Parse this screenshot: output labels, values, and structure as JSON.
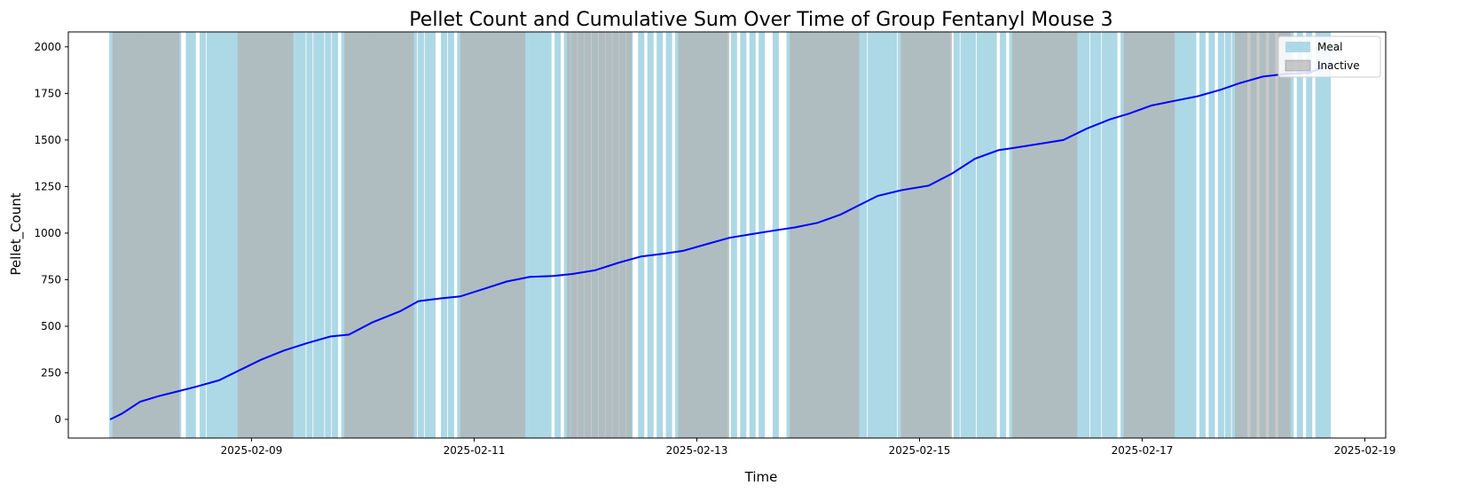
{
  "chart_data": {
    "type": "line",
    "title": "Pellet Count and Cumulative Sum Over Time of Group Fentanyl Mouse 3",
    "xlabel": "Time",
    "ylabel": "Pellet_Count",
    "ylim": [
      -100,
      2080
    ],
    "xlim": [
      "2025-02-07T08:30",
      "2025-02-19T04:30"
    ],
    "yticks": [
      0,
      250,
      500,
      750,
      1000,
      1250,
      1500,
      1750,
      2000
    ],
    "xticks": [
      "2025-02-09",
      "2025-02-11",
      "2025-02-13",
      "2025-02-15",
      "2025-02-17",
      "2025-02-19"
    ],
    "legend_position": "top-right",
    "legend": [
      {
        "label": "Meal",
        "color": "#add8e6"
      },
      {
        "label": "Inactive",
        "color": "#b0b0b0"
      }
    ],
    "series": [
      {
        "color": "#0000ff",
        "x": [
          "2025-02-07T17:30",
          "2025-02-07T20:00",
          "2025-02-08T00:00",
          "2025-02-08T04:00",
          "2025-02-08T08:00",
          "2025-02-08T12:00",
          "2025-02-08T17:00",
          "2025-02-08T21:30",
          "2025-02-09T02:00",
          "2025-02-09T07:00",
          "2025-02-09T12:00",
          "2025-02-09T17:00",
          "2025-02-09T21:00",
          "2025-02-10T02:00",
          "2025-02-10T08:00",
          "2025-02-10T12:00",
          "2025-02-10T17:00",
          "2025-02-10T21:00",
          "2025-02-11T02:00",
          "2025-02-11T07:00",
          "2025-02-11T12:00",
          "2025-02-11T17:00",
          "2025-02-11T21:00",
          "2025-02-12T02:00",
          "2025-02-12T07:00",
          "2025-02-12T12:00",
          "2025-02-12T17:00",
          "2025-02-12T21:00",
          "2025-02-13T02:00",
          "2025-02-13T07:00",
          "2025-02-13T12:00",
          "2025-02-13T17:00",
          "2025-02-13T21:00",
          "2025-02-14T02:00",
          "2025-02-14T07:00",
          "2025-02-14T11:00",
          "2025-02-14T15:00",
          "2025-02-14T20:00",
          "2025-02-15T02:00",
          "2025-02-15T07:00",
          "2025-02-15T12:00",
          "2025-02-15T17:00",
          "2025-02-15T21:00",
          "2025-02-16T02:00",
          "2025-02-16T07:00",
          "2025-02-16T12:00",
          "2025-02-16T17:00",
          "2025-02-16T21:00",
          "2025-02-17T02:00",
          "2025-02-17T07:00",
          "2025-02-17T12:00",
          "2025-02-17T17:00",
          "2025-02-17T21:00",
          "2025-02-18T02:00",
          "2025-02-18T07:00",
          "2025-02-18T12:00",
          "2025-02-18T17:00"
        ],
        "y": [
          0,
          30,
          95,
          125,
          150,
          175,
          210,
          265,
          320,
          370,
          410,
          445,
          455,
          520,
          580,
          635,
          650,
          660,
          700,
          740,
          765,
          770,
          780,
          800,
          840,
          875,
          890,
          905,
          940,
          975,
          995,
          1015,
          1030,
          1055,
          1100,
          1150,
          1200,
          1230,
          1255,
          1320,
          1400,
          1445,
          1460,
          1480,
          1500,
          1560,
          1610,
          1640,
          1685,
          1710,
          1735,
          1770,
          1805,
          1840,
          1855,
          1860,
          1910
        ]
      }
    ],
    "inactive_periods": [
      [
        "2025-02-07T18:00",
        "2025-02-08T08:30"
      ],
      [
        "2025-02-08T21:00",
        "2025-02-09T09:00"
      ],
      [
        "2025-02-09T20:00",
        "2025-02-10T11:00"
      ],
      [
        "2025-02-10T21:00",
        "2025-02-11T11:00"
      ],
      [
        "2025-02-11T20:00",
        "2025-02-12T10:00"
      ],
      [
        "2025-02-12T20:00",
        "2025-02-13T07:00"
      ],
      [
        "2025-02-13T20:00",
        "2025-02-14T11:00"
      ],
      [
        "2025-02-14T20:00",
        "2025-02-15T07:00"
      ],
      [
        "2025-02-15T20:00",
        "2025-02-16T10:00"
      ],
      [
        "2025-02-16T20:00",
        "2025-02-17T07:00"
      ],
      [
        "2025-02-17T20:00",
        "2025-02-18T08:00"
      ]
    ],
    "meal_times": [
      "2025-02-07T18:00",
      "2025-02-07T18:50",
      "2025-02-07T19:40",
      "2025-02-07T20:30",
      "2025-02-07T21:20",
      "2025-02-07T22:10",
      "2025-02-07T23:00",
      "2025-02-07T23:50",
      "2025-02-08T00:40",
      "2025-02-08T01:30",
      "2025-02-08T02:20",
      "2025-02-08T03:10",
      "2025-02-08T04:00",
      "2025-02-08T04:50",
      "2025-02-08T05:40",
      "2025-02-08T06:30",
      "2025-02-08T07:20",
      "2025-02-08T08:10",
      "2025-02-08T10:30",
      "2025-02-08T11:20",
      "2025-02-08T13:30",
      "2025-02-08T15:00",
      "2025-02-08T16:00",
      "2025-02-08T17:00",
      "2025-02-08T18:00",
      "2025-02-08T19:00",
      "2025-02-08T20:00",
      "2025-02-08T21:00",
      "2025-02-08T21:50",
      "2025-02-08T22:40",
      "2025-02-08T23:30",
      "2025-02-09T00:20",
      "2025-02-09T01:10",
      "2025-02-09T02:00",
      "2025-02-09T02:50",
      "2025-02-09T03:40",
      "2025-02-09T04:30",
      "2025-02-09T05:20",
      "2025-02-09T06:10",
      "2025-02-09T07:00",
      "2025-02-09T07:50",
      "2025-02-09T08:40",
      "2025-02-09T10:00",
      "2025-02-09T11:00",
      "2025-02-09T12:30",
      "2025-02-09T14:00",
      "2025-02-09T15:00",
      "2025-02-09T16:30",
      "2025-02-09T18:00",
      "2025-02-09T20:00",
      "2025-02-09T20:50",
      "2025-02-09T21:40",
      "2025-02-09T22:30",
      "2025-02-09T23:20",
      "2025-02-10T00:10",
      "2025-02-10T01:00",
      "2025-02-10T01:50",
      "2025-02-10T02:40",
      "2025-02-10T03:30",
      "2025-02-10T04:20",
      "2025-02-10T05:10",
      "2025-02-10T06:00",
      "2025-02-10T06:50",
      "2025-02-10T07:40",
      "2025-02-10T08:30",
      "2025-02-10T09:20",
      "2025-02-10T10:10",
      "2025-02-10T11:00",
      "2025-02-10T12:30",
      "2025-02-10T14:00",
      "2025-02-10T15:00",
      "2025-02-10T17:30",
      "2025-02-10T19:00",
      "2025-02-10T21:00",
      "2025-02-10T21:50",
      "2025-02-10T22:40",
      "2025-02-10T23:30",
      "2025-02-11T00:20",
      "2025-02-11T01:10",
      "2025-02-11T02:00",
      "2025-02-11T02:50",
      "2025-02-11T03:40",
      "2025-02-11T04:30",
      "2025-02-11T05:20",
      "2025-02-11T06:10",
      "2025-02-11T07:00",
      "2025-02-11T07:50",
      "2025-02-11T08:40",
      "2025-02-11T09:30",
      "2025-02-11T10:20",
      "2025-02-11T11:10",
      "2025-02-11T12:30",
      "2025-02-11T13:40",
      "2025-02-11T14:50",
      "2025-02-11T16:00",
      "2025-02-11T18:00",
      "2025-02-11T20:00",
      "2025-02-11T21:30",
      "2025-02-11T23:00",
      "2025-02-12T00:30",
      "2025-02-12T02:00",
      "2025-02-12T03:30",
      "2025-02-12T05:00",
      "2025-02-12T06:30",
      "2025-02-12T08:00",
      "2025-02-12T09:30",
      "2025-02-12T12:00",
      "2025-02-12T14:00",
      "2025-02-12T16:00",
      "2025-02-12T18:00",
      "2025-02-12T20:00",
      "2025-02-12T21:00",
      "2025-02-12T22:00",
      "2025-02-12T23:00",
      "2025-02-13T00:00",
      "2025-02-13T01:00",
      "2025-02-13T02:00",
      "2025-02-13T03:00",
      "2025-02-13T04:00",
      "2025-02-13T05:00",
      "2025-02-13T06:00",
      "2025-02-13T08:00",
      "2025-02-13T10:00",
      "2025-02-13T12:00",
      "2025-02-13T14:00",
      "2025-02-13T17:00",
      "2025-02-13T20:00",
      "2025-02-13T21:00",
      "2025-02-13T22:00",
      "2025-02-13T23:00",
      "2025-02-14T00:00",
      "2025-02-14T01:00",
      "2025-02-14T02:00",
      "2025-02-14T03:00",
      "2025-02-14T04:00",
      "2025-02-14T05:00",
      "2025-02-14T06:00",
      "2025-02-14T07:00",
      "2025-02-14T08:00",
      "2025-02-14T09:00",
      "2025-02-14T10:00",
      "2025-02-14T11:00",
      "2025-02-14T12:00",
      "2025-02-14T13:30",
      "2025-02-14T14:30",
      "2025-02-14T15:40",
      "2025-02-14T16:30",
      "2025-02-14T17:30",
      "2025-02-14T18:30",
      "2025-02-14T20:00",
      "2025-02-14T21:00",
      "2025-02-14T22:00",
      "2025-02-14T23:00",
      "2025-02-15T00:00",
      "2025-02-15T01:00",
      "2025-02-15T02:00",
      "2025-02-15T03:00",
      "2025-02-15T04:00",
      "2025-02-15T05:00",
      "2025-02-15T06:00",
      "2025-02-15T08:00",
      "2025-02-15T09:30",
      "2025-02-15T10:30",
      "2025-02-15T11:30",
      "2025-02-15T13:00",
      "2025-02-15T14:00",
      "2025-02-15T15:00",
      "2025-02-15T16:00",
      "2025-02-15T18:00",
      "2025-02-15T20:00",
      "2025-02-15T21:00",
      "2025-02-15T22:00",
      "2025-02-15T23:00",
      "2025-02-16T00:00",
      "2025-02-16T01:00",
      "2025-02-16T02:00",
      "2025-02-16T03:00",
      "2025-02-16T04:00",
      "2025-02-16T05:00",
      "2025-02-16T06:00",
      "2025-02-16T07:00",
      "2025-02-16T08:00",
      "2025-02-16T09:00",
      "2025-02-16T10:00",
      "2025-02-16T11:00",
      "2025-02-16T12:00",
      "2025-02-16T13:30",
      "2025-02-16T14:30",
      "2025-02-16T16:00",
      "2025-02-16T17:00",
      "2025-02-16T18:00",
      "2025-02-16T20:00",
      "2025-02-16T21:00",
      "2025-02-16T22:00",
      "2025-02-16T23:00",
      "2025-02-17T00:00",
      "2025-02-17T01:00",
      "2025-02-17T02:00",
      "2025-02-17T03:00",
      "2025-02-17T04:00",
      "2025-02-17T05:00",
      "2025-02-17T06:00",
      "2025-02-17T07:00",
      "2025-02-17T08:00",
      "2025-02-17T09:00",
      "2025-02-17T10:00",
      "2025-02-17T11:00",
      "2025-02-17T13:00",
      "2025-02-17T15:00",
      "2025-02-17T17:00",
      "2025-02-17T18:30",
      "2025-02-17T20:00",
      "2025-02-17T21:00",
      "2025-02-17T22:00",
      "2025-02-18T00:00",
      "2025-02-18T02:00",
      "2025-02-18T04:00",
      "2025-02-18T06:00",
      "2025-02-18T07:00",
      "2025-02-18T08:00",
      "2025-02-18T10:00",
      "2025-02-18T12:00",
      "2025-02-18T14:00",
      "2025-02-18T15:00",
      "2025-02-18T16:00"
    ]
  }
}
